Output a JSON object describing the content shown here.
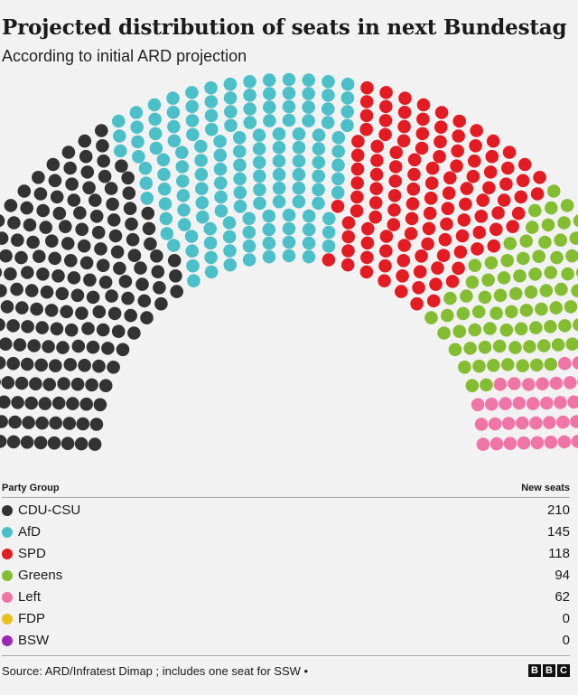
{
  "title": "Projected distribution of seats in next Bundestag",
  "subtitle": "According to initial ARD projection",
  "chart_data": {
    "type": "parliament",
    "total_seats": 630,
    "series": [
      {
        "name": "CDU-CSU",
        "value": 210,
        "color": "#333333"
      },
      {
        "name": "AfD",
        "value": 145,
        "color": "#4bc0c8"
      },
      {
        "name": "SPD",
        "value": 118,
        "color": "#e31b23"
      },
      {
        "name": "Greens",
        "value": 94,
        "color": "#84bd32"
      },
      {
        "name": "Left",
        "value": 62,
        "color": "#f075a7"
      },
      {
        "name": "FDP",
        "value": 0,
        "color": "#e8c21b"
      },
      {
        "name": "BSW",
        "value": 0,
        "color": "#9b2ab4"
      }
    ],
    "other_seat": {
      "count": 1,
      "color": "#ffffff"
    }
  },
  "table": {
    "col_party": "Party Group",
    "col_seats": "New seats",
    "rows": [
      {
        "party": "CDU-CSU",
        "seats": "210",
        "color": "#333333"
      },
      {
        "party": "AfD",
        "seats": "145",
        "color": "#4bc0c8"
      },
      {
        "party": "SPD",
        "seats": "118",
        "color": "#e31b23"
      },
      {
        "party": "Greens",
        "seats": "94",
        "color": "#84bd32"
      },
      {
        "party": "Left",
        "seats": "62",
        "color": "#f075a7"
      },
      {
        "party": "FDP",
        "seats": "0",
        "color": "#e8c21b"
      },
      {
        "party": "BSW",
        "seats": "0",
        "color": "#9b2ab4"
      }
    ]
  },
  "source": "Source: ARD/Infratest Dimap ; includes one seat for SSW •",
  "logo": [
    "B",
    "B",
    "C"
  ]
}
